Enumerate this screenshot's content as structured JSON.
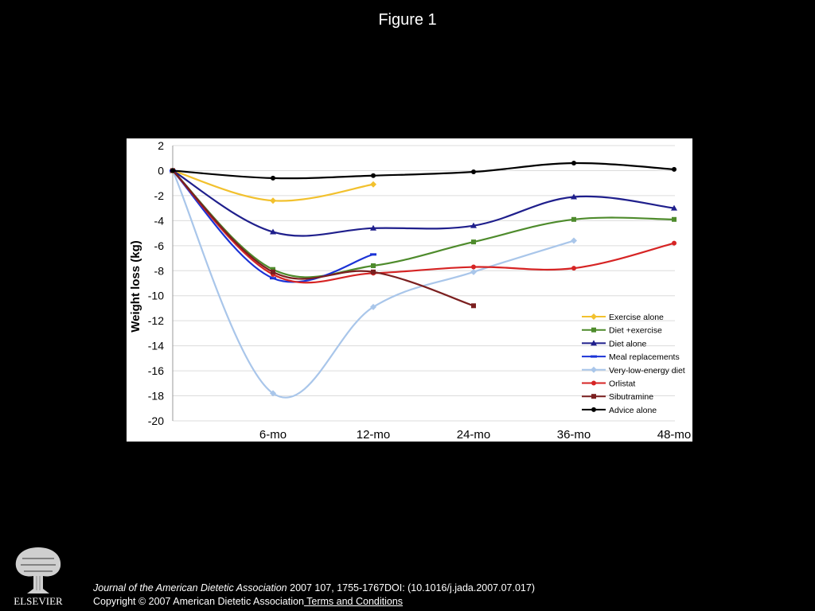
{
  "page": {
    "figure_title": "Figure 1",
    "citation": {
      "journal": "Journal of the American Dietetic Association",
      "details": " 2007 107, 1755-1767DOI: (10.1016/j.jada.2007.07.017)",
      "copyright": "Copyright © 2007 American Dietetic Association",
      "terms_link": " Terms and Conditions"
    },
    "publisher_logo_text": "ELSEVIER"
  },
  "chart_data": {
    "type": "line",
    "title": "",
    "xlabel": "",
    "ylabel": "Weight loss (kg)",
    "categories": [
      "",
      "6-mo",
      "12-mo",
      "24-mo",
      "36-mo",
      "48-mo"
    ],
    "ylim": [
      -20,
      2
    ],
    "yticks": [
      "2",
      "0",
      "-2",
      "-4",
      "-6",
      "-8",
      "-10",
      "-12",
      "-14",
      "-16",
      "-18",
      "-20"
    ],
    "grid": true,
    "legend_position": "bottom-right",
    "series": [
      {
        "name": "Exercise alone",
        "color": "#f2c12e",
        "marker": "diamond",
        "points": [
          [
            0,
            0
          ],
          [
            1,
            -2.4
          ],
          [
            2,
            -1.1
          ]
        ]
      },
      {
        "name": "Diet +exercise",
        "color": "#4e8b2c",
        "marker": "square",
        "points": [
          [
            0,
            0
          ],
          [
            1,
            -7.9
          ],
          [
            2,
            -7.6
          ],
          [
            3,
            -5.7
          ],
          [
            4,
            -3.9
          ],
          [
            5,
            -3.9
          ]
        ]
      },
      {
        "name": "Diet alone",
        "color": "#1f1f8c",
        "marker": "triangle",
        "points": [
          [
            0,
            0
          ],
          [
            1,
            -4.9
          ],
          [
            2,
            -4.6
          ],
          [
            3,
            -4.4
          ],
          [
            4,
            -2.1
          ],
          [
            5,
            -3.0
          ]
        ]
      },
      {
        "name": "Meal replacements",
        "color": "#1b33d6",
        "marker": "dash",
        "points": [
          [
            0,
            0
          ],
          [
            1,
            -8.6
          ],
          [
            2,
            -6.7
          ]
        ]
      },
      {
        "name": "Very-low-energy diet",
        "color": "#a9c6ea",
        "marker": "diamond",
        "points": [
          [
            0,
            0
          ],
          [
            1,
            -17.8
          ],
          [
            2,
            -10.9
          ],
          [
            3,
            -8.1
          ],
          [
            4,
            -5.6
          ]
        ]
      },
      {
        "name": "Orlistat",
        "color": "#d62424",
        "marker": "circle",
        "points": [
          [
            0,
            0
          ],
          [
            1,
            -8.3
          ],
          [
            2,
            -8.2
          ],
          [
            3,
            -7.7
          ],
          [
            4,
            -7.8
          ],
          [
            5,
            -5.8
          ]
        ]
      },
      {
        "name": "Sibutramine",
        "color": "#7b1f1f",
        "marker": "square",
        "points": [
          [
            0,
            0
          ],
          [
            1,
            -8.1
          ],
          [
            2,
            -8.1
          ],
          [
            3,
            -10.8
          ]
        ]
      },
      {
        "name": "Advice alone",
        "color": "#000000",
        "marker": "circle",
        "points": [
          [
            0,
            0
          ],
          [
            1,
            -0.6
          ],
          [
            2,
            -0.4
          ],
          [
            3,
            -0.1
          ],
          [
            4,
            0.6
          ],
          [
            5,
            0.1
          ]
        ]
      }
    ]
  }
}
